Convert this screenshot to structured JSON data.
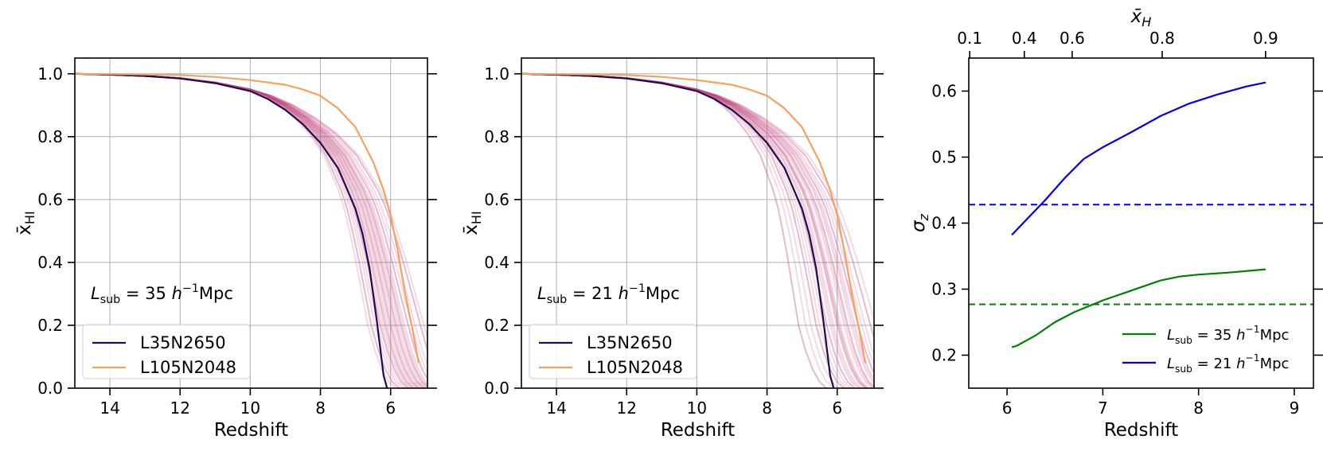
{
  "figure": {
    "panels": [
      {
        "xlabel": "Redshift",
        "ylabel": "x̄",
        "ylabel_sub": "HI",
        "annotation": {
          "L": "L",
          "sub": "sub",
          "rest": " = 35 h",
          "sup": "−1",
          "unit": "Mpc"
        },
        "legend": [
          "L35N2650",
          "L105N2048"
        ]
      },
      {
        "xlabel": "Redshift",
        "ylabel": "x̄",
        "ylabel_sub": "HI",
        "annotation": {
          "L": "L",
          "sub": "sub",
          "rest": " = 21 h",
          "sup": "−1",
          "unit": "Mpc"
        },
        "legend": [
          "L35N2650",
          "L105N2048"
        ]
      },
      {
        "xlabel": "Redshift",
        "ylabel": "σ",
        "ylabel_sub": "z",
        "top_xlabel": "x̄",
        "top_xlabel_sub": "H",
        "legend": [
          {
            "L": "L",
            "sub": "sub",
            "rest": " = 35 h",
            "sup": "−1",
            "unit": "Mpc"
          },
          {
            "L": "L",
            "sub": "sub",
            "rest": " = 21 h",
            "sup": "−1",
            "unit": "Mpc"
          }
        ]
      }
    ]
  },
  "colors": {
    "dark": "#1f0a52",
    "orange": "#f4a261",
    "pink": "#c2477d",
    "green": "#008000",
    "blue": "#0000ee",
    "grid": "#b0b0b0"
  },
  "chart_data": [
    {
      "type": "line",
      "xlabel": "Redshift",
      "ylabel": "x̄_HI",
      "xlim": [
        15,
        4.95
      ],
      "ylim": [
        0,
        1.05
      ],
      "xticks": [
        14,
        12,
        10,
        8,
        6
      ],
      "yticks": [
        0.0,
        0.2,
        0.4,
        0.6,
        0.8,
        1.0
      ],
      "grid": true,
      "legend_position": "lower-left",
      "series": [
        {
          "name": "L35N2650",
          "x": [
            15,
            14,
            13,
            12,
            11,
            10,
            9.5,
            9,
            8.5,
            8,
            7.5,
            7,
            6.8,
            6.6,
            6.4,
            6.3,
            6.2,
            6.1
          ],
          "y": [
            1.0,
            0.997,
            0.993,
            0.985,
            0.97,
            0.945,
            0.92,
            0.885,
            0.84,
            0.78,
            0.7,
            0.57,
            0.49,
            0.38,
            0.22,
            0.13,
            0.04,
            0.0
          ]
        },
        {
          "name": "L105N2048",
          "x": [
            15,
            14,
            13,
            12,
            11,
            10,
            9,
            8.5,
            8,
            7.5,
            7,
            6.5,
            6.2,
            6,
            5.8,
            5.6,
            5.4,
            5.2
          ],
          "y": [
            1.0,
            0.999,
            0.998,
            0.996,
            0.99,
            0.98,
            0.965,
            0.95,
            0.93,
            0.89,
            0.83,
            0.72,
            0.63,
            0.55,
            0.44,
            0.31,
            0.2,
            0.08
          ]
        }
      ],
      "ensemble": {
        "center_x": [
          15,
          14,
          13,
          12,
          11,
          10,
          9.5,
          9,
          8.5,
          8,
          7.5,
          7,
          6.8,
          6.6,
          6.4,
          6.2,
          6,
          5.8,
          5.6,
          5.4,
          5.2
        ],
        "center_y": [
          1.0,
          0.997,
          0.993,
          0.986,
          0.972,
          0.95,
          0.93,
          0.9,
          0.86,
          0.81,
          0.74,
          0.63,
          0.57,
          0.49,
          0.4,
          0.3,
          0.2,
          0.12,
          0.06,
          0.02,
          0.0
        ],
        "shifts": [
          -0.55,
          -0.45,
          -0.38,
          -0.3,
          -0.25,
          -0.2,
          -0.15,
          -0.1,
          -0.05,
          0,
          0.05,
          0.1,
          0.15,
          0.2,
          0.25,
          0.3,
          0.35,
          0.4,
          0.5,
          0.6,
          0.7,
          0.85,
          -0.65,
          0.95
        ]
      }
    },
    {
      "type": "line",
      "xlabel": "Redshift",
      "ylabel": "x̄_HI",
      "xlim": [
        15,
        4.95
      ],
      "ylim": [
        0,
        1.05
      ],
      "xticks": [
        14,
        12,
        10,
        8,
        6
      ],
      "yticks": [
        0.0,
        0.2,
        0.4,
        0.6,
        0.8,
        1.0
      ],
      "grid": true,
      "legend_position": "lower-left",
      "series": [
        {
          "name": "L35N2650",
          "x": [
            15,
            14,
            13,
            12,
            11,
            10,
            9.5,
            9,
            8.5,
            8,
            7.5,
            7,
            6.8,
            6.6,
            6.4,
            6.3,
            6.2,
            6.1
          ],
          "y": [
            1.0,
            0.997,
            0.993,
            0.985,
            0.97,
            0.945,
            0.92,
            0.885,
            0.84,
            0.78,
            0.7,
            0.57,
            0.49,
            0.38,
            0.22,
            0.13,
            0.04,
            0.0
          ]
        },
        {
          "name": "L105N2048",
          "x": [
            15,
            14,
            13,
            12,
            11,
            10,
            9,
            8.5,
            8,
            7.5,
            7,
            6.5,
            6.2,
            6,
            5.8,
            5.6,
            5.4,
            5.2
          ],
          "y": [
            1.0,
            0.999,
            0.998,
            0.996,
            0.99,
            0.98,
            0.965,
            0.95,
            0.93,
            0.89,
            0.83,
            0.72,
            0.63,
            0.55,
            0.44,
            0.31,
            0.2,
            0.08
          ]
        }
      ],
      "ensemble": {
        "center_x": [
          15,
          14,
          13,
          12,
          11,
          10,
          9.5,
          9,
          8.5,
          8,
          7.5,
          7,
          6.8,
          6.6,
          6.4,
          6.2,
          6,
          5.8,
          5.6,
          5.4,
          5.2
        ],
        "center_y": [
          1.0,
          0.997,
          0.993,
          0.986,
          0.972,
          0.95,
          0.93,
          0.9,
          0.86,
          0.81,
          0.74,
          0.63,
          0.57,
          0.49,
          0.4,
          0.3,
          0.2,
          0.12,
          0.06,
          0.02,
          0.0
        ],
        "shifts": [
          -1.1,
          -0.9,
          -0.75,
          -0.6,
          -0.5,
          -0.4,
          -0.3,
          -0.2,
          -0.1,
          0,
          0.1,
          0.2,
          0.3,
          0.4,
          0.5,
          0.6,
          0.7,
          0.8,
          0.95,
          1.1,
          -0.15,
          0.05,
          0.25,
          0.45
        ]
      }
    },
    {
      "type": "line",
      "xlabel": "Redshift",
      "ylabel": "σ_z",
      "top_xlabel": "x̄_H",
      "xlim": [
        5.6,
        9.2
      ],
      "ylim": [
        0.15,
        0.65
      ],
      "xticks": [
        6,
        7,
        8,
        9
      ],
      "yticks": [
        0.2,
        0.3,
        0.4,
        0.5,
        0.6
      ],
      "top_xticks": [
        {
          "label": "0.1",
          "x": 5.61
        },
        {
          "label": "0.4",
          "x": 6.18
        },
        {
          "label": "0.6",
          "x": 6.68
        },
        {
          "label": "0.8",
          "x": 7.62
        },
        {
          "label": "0.9",
          "x": 8.7
        }
      ],
      "grid": false,
      "legend_position": "lower-right",
      "series": [
        {
          "name": "L_sub = 35 h⁻¹Mpc",
          "x": [
            6.05,
            6.1,
            6.3,
            6.5,
            6.7,
            7.0,
            7.3,
            7.6,
            7.8,
            8.0,
            8.3,
            8.7
          ],
          "y": [
            0.212,
            0.214,
            0.23,
            0.25,
            0.265,
            0.283,
            0.298,
            0.313,
            0.319,
            0.322,
            0.325,
            0.33
          ]
        },
        {
          "name": "L_sub = 21 h⁻¹Mpc",
          "x": [
            6.05,
            6.2,
            6.4,
            6.6,
            6.8,
            7.0,
            7.3,
            7.6,
            7.9,
            8.2,
            8.5,
            8.7
          ],
          "y": [
            0.382,
            0.405,
            0.435,
            0.468,
            0.497,
            0.515,
            0.538,
            0.562,
            0.581,
            0.595,
            0.607,
            0.613
          ]
        },
        {
          "name": "",
          "dashed": true,
          "y_const": 0.277
        },
        {
          "name": "",
          "dashed": true,
          "y_const": 0.428
        }
      ]
    }
  ]
}
